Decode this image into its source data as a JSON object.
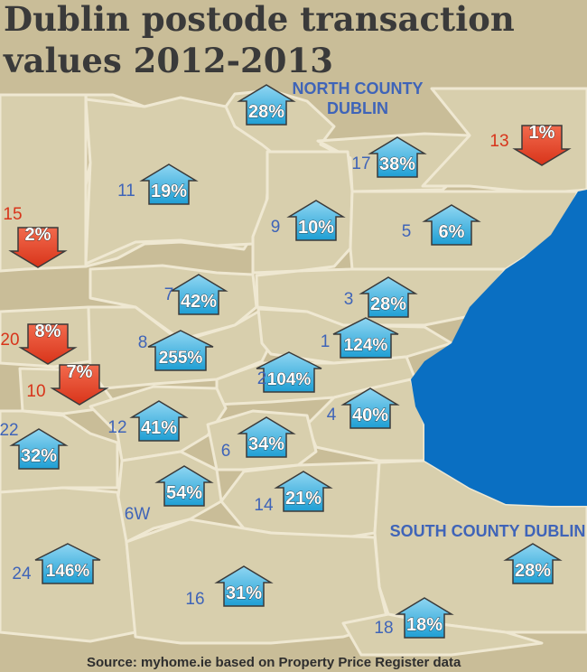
{
  "title_lines": [
    "Dublin postode transaction",
    "values 2012-2013"
  ],
  "source": "Source: myhome.ie based on Property Price Register data",
  "colors": {
    "up": "#29a7d8",
    "down": "#e83a1f",
    "sea": "#0a6fc2",
    "land": "#c9bd98",
    "district_label": "#3f64b8",
    "decline_label": "#d8341a"
  },
  "regions": [
    {
      "label_lines": [
        "NORTH COUNTY",
        "DUBLIN"
      ]
    },
    {
      "label_lines": [
        "SOUTH COUNTY DUBLIN"
      ]
    }
  ],
  "districts": [
    {
      "code": "",
      "change": "28%",
      "direction": "up"
    },
    {
      "code": "17",
      "change": "38%",
      "direction": "up"
    },
    {
      "code": "13",
      "change": "1%",
      "direction": "down"
    },
    {
      "code": "11",
      "change": "19%",
      "direction": "up"
    },
    {
      "code": "15",
      "change": "2%",
      "direction": "down"
    },
    {
      "code": "9",
      "change": "10%",
      "direction": "up"
    },
    {
      "code": "5",
      "change": "6%",
      "direction": "up"
    },
    {
      "code": "7",
      "change": "42%",
      "direction": "up"
    },
    {
      "code": "3",
      "change": "28%",
      "direction": "up"
    },
    {
      "code": "20",
      "change": "8%",
      "direction": "down"
    },
    {
      "code": "8",
      "change": "255%",
      "direction": "up"
    },
    {
      "code": "1",
      "change": "124%",
      "direction": "up"
    },
    {
      "code": "10",
      "change": "7%",
      "direction": "down"
    },
    {
      "code": "2",
      "change": "104%",
      "direction": "up"
    },
    {
      "code": "4",
      "change": "40%",
      "direction": "up"
    },
    {
      "code": "22",
      "change": "32%",
      "direction": "up"
    },
    {
      "code": "12",
      "change": "41%",
      "direction": "up"
    },
    {
      "code": "6",
      "change": "34%",
      "direction": "up"
    },
    {
      "code": "6W",
      "change": "54%",
      "direction": "up"
    },
    {
      "code": "14",
      "change": "21%",
      "direction": "up"
    },
    {
      "code": "",
      "change": "28%",
      "direction": "up"
    },
    {
      "code": "24",
      "change": "146%",
      "direction": "up"
    },
    {
      "code": "16",
      "change": "31%",
      "direction": "up"
    },
    {
      "code": "18",
      "change": "18%",
      "direction": "up"
    }
  ]
}
